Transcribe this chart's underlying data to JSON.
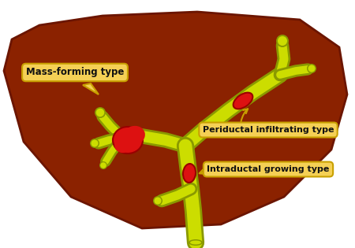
{
  "background_color": "#ffffff",
  "liver_color": "#8B2200",
  "liver_outline": "#6B1500",
  "duct_color": "#CCDD00",
  "duct_outline": "#8A9900",
  "tumor_color": "#DD1111",
  "tumor_outline": "#990000",
  "label_bg_color": "#F5D055",
  "label_border_color": "#C8A000",
  "label1_text": "Mass-forming type",
  "label2_text": "Periductal infiltrating type",
  "label3_text": "Intraductal growing type"
}
